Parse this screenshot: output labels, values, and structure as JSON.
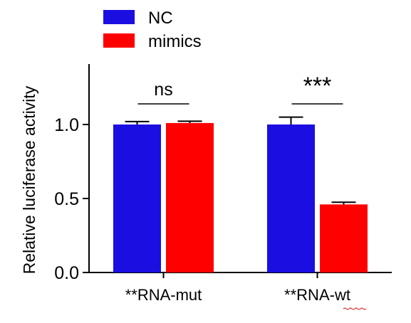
{
  "chart_data": {
    "type": "bar",
    "categories": [
      "**RNA-mut",
      "**RNA-wt"
    ],
    "series": [
      {
        "name": "NC",
        "color": "#1a0fe0",
        "values": [
          1.0,
          1.0
        ],
        "errors": [
          0.02,
          0.05
        ]
      },
      {
        "name": "mimics",
        "color": "#ff0000",
        "values": [
          1.01,
          0.46
        ],
        "errors": [
          0.012,
          0.015
        ]
      }
    ],
    "ylabel": "Relative luciferase activity",
    "ylim": [
      0,
      1.4
    ],
    "yticks": [
      "0.0",
      "0.5",
      "1.0"
    ],
    "significance": [
      "ns",
      "***"
    ],
    "grid": false,
    "legend_position": "top-left"
  }
}
